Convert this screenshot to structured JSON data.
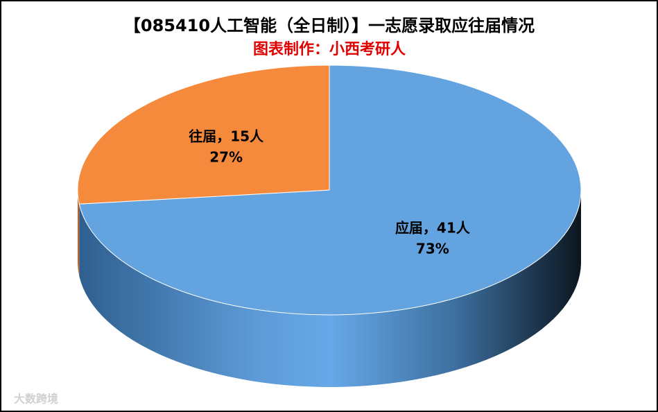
{
  "chart_data": {
    "type": "pie3d",
    "title": "【085410人工智能（全日制）】一志愿录取应往届情况",
    "subtitle": "图表制作：小西考研人",
    "values": [
      41,
      15
    ],
    "value_labels": [
      "应届，41人",
      "往届，15人"
    ],
    "percent_values": [
      73,
      27
    ],
    "percent_labels": [
      "73%",
      "27%"
    ],
    "colors": [
      "#62a3e0",
      "#f58a3c"
    ],
    "watermark": "大数跨境"
  }
}
